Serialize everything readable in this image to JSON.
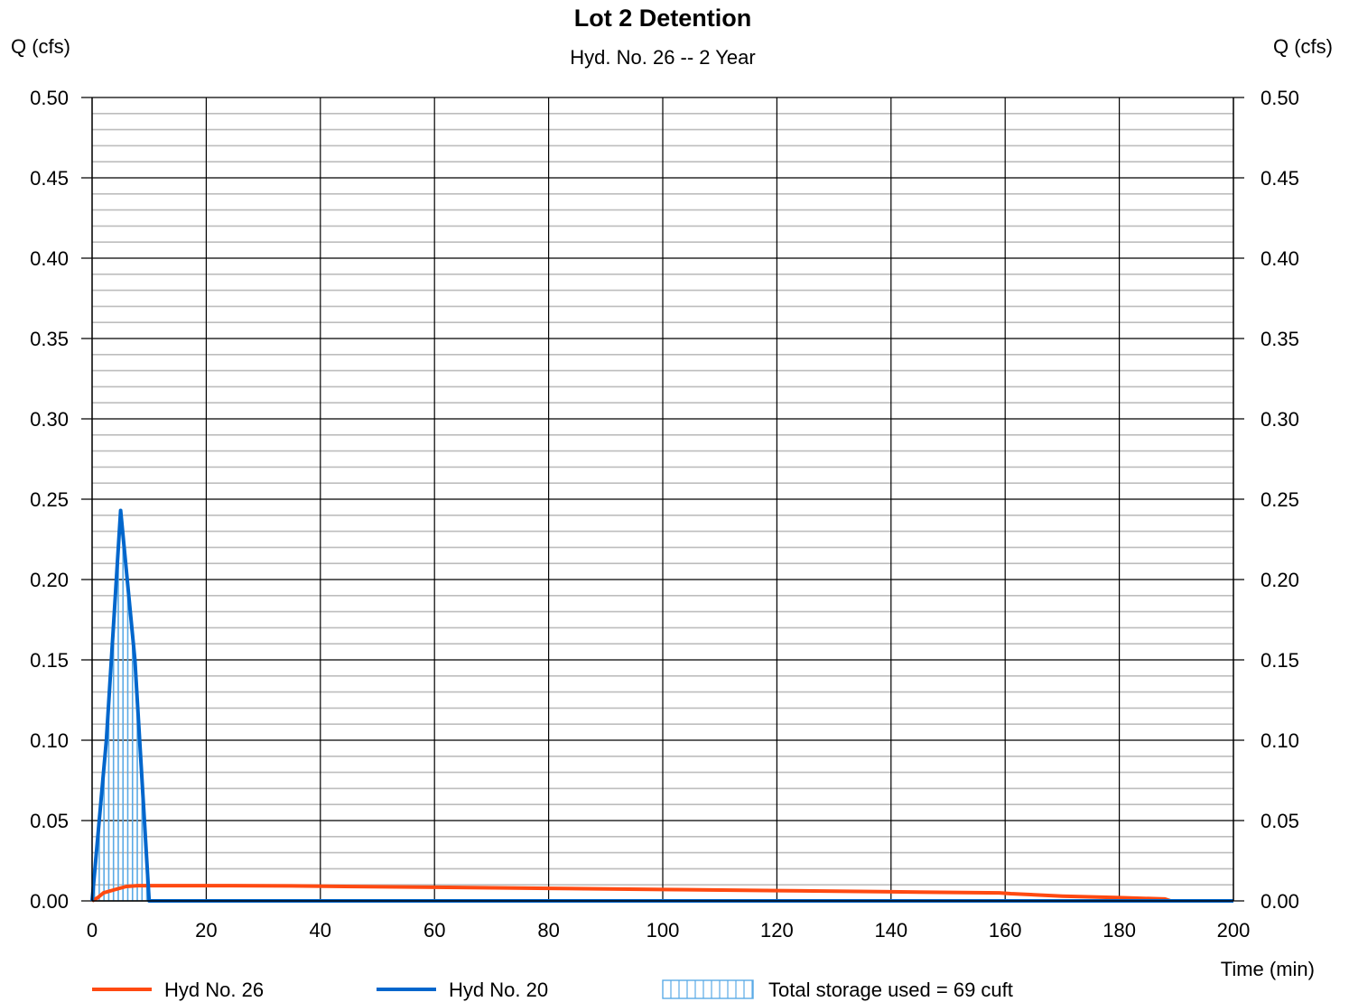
{
  "chart_data": {
    "type": "line",
    "title": "Lot 2 Detention",
    "subtitle": "Hyd. No. 26 -- 2 Year",
    "ylabel_left": "Q (cfs)",
    "ylabel_right": "Q (cfs)",
    "xlabel": "Time (min)",
    "xlim": [
      0,
      200
    ],
    "ylim": [
      0,
      0.5
    ],
    "x_ticks": [
      0,
      20,
      40,
      60,
      80,
      100,
      120,
      140,
      160,
      180,
      200
    ],
    "x_tick_labels": [
      "0",
      "20",
      "40",
      "60",
      "80",
      "100",
      "120",
      "140",
      "160",
      "180",
      "200"
    ],
    "y_ticks": [
      0,
      0.05,
      0.1,
      0.15,
      0.2,
      0.25,
      0.3,
      0.35,
      0.4,
      0.45,
      0.5
    ],
    "y_tick_labels": [
      "0.00",
      "0.05",
      "0.10",
      "0.15",
      "0.20",
      "0.25",
      "0.30",
      "0.35",
      "0.40",
      "0.45",
      "0.50"
    ],
    "y_minor_step": 0.01,
    "grid": true,
    "series": [
      {
        "name": "Hyd No. 26",
        "color": "#ff4a12",
        "x": [
          0,
          1,
          2,
          4,
          6,
          8,
          10,
          20,
          35,
          60,
          80,
          100,
          120,
          140,
          159,
          161,
          170,
          180,
          188,
          189,
          200
        ],
        "y": [
          0,
          0.002,
          0.005,
          0.007,
          0.009,
          0.0095,
          0.0095,
          0.0095,
          0.0093,
          0.0085,
          0.0078,
          0.0071,
          0.0064,
          0.0057,
          0.005,
          0.0045,
          0.003,
          0.002,
          0.0012,
          0,
          0
        ]
      },
      {
        "name": "Hyd No. 20",
        "color": "#0066cc",
        "x": [
          0,
          2.5,
          5,
          7.5,
          10,
          200
        ],
        "y": [
          0,
          0.1,
          0.243,
          0.15,
          0,
          0
        ]
      }
    ],
    "storage": {
      "label": "Total storage used = 69 cuft",
      "color": "#5aaae6"
    },
    "legend": {
      "position": "bottom",
      "items": [
        "Hyd No. 26",
        "Hyd No. 20",
        "Total storage used = 69 cuft"
      ]
    }
  }
}
